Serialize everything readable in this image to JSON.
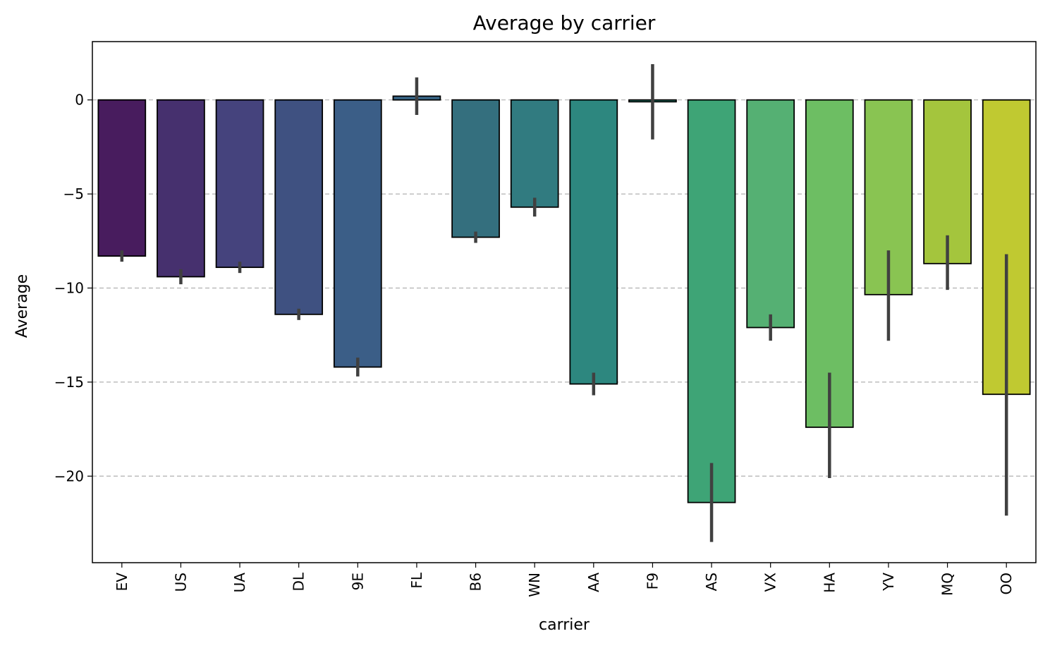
{
  "chart_data": {
    "type": "bar",
    "title": "Average by carrier",
    "xlabel": "carrier",
    "ylabel": "Average",
    "ylim": [
      -24.6,
      3.1
    ],
    "yticks": [
      0,
      -5,
      -10,
      -15,
      -20
    ],
    "ytick_labels": [
      "0",
      "−5",
      "−10",
      "−15",
      "−20"
    ],
    "grid": "y-dashed",
    "categories": [
      "EV",
      "US",
      "UA",
      "DL",
      "9E",
      "FL",
      "B6",
      "WN",
      "AA",
      "F9",
      "AS",
      "VX",
      "HA",
      "YV",
      "MQ",
      "OO"
    ],
    "values": [
      -8.3,
      -9.4,
      -8.9,
      -11.4,
      -14.2,
      0.2,
      -7.3,
      -5.7,
      -15.1,
      -0.1,
      -21.4,
      -12.1,
      -17.4,
      -10.35,
      -8.7,
      -15.65
    ],
    "error_low": [
      -8.6,
      -9.8,
      -9.2,
      -11.7,
      -14.7,
      -0.8,
      -7.6,
      -6.2,
      -15.7,
      -2.1,
      -23.5,
      -12.8,
      -20.1,
      -12.8,
      -10.1,
      -22.1
    ],
    "error_high": [
      -8.0,
      -9.0,
      -8.6,
      -11.1,
      -13.7,
      1.2,
      -7.0,
      -5.2,
      -14.5,
      1.9,
      -19.3,
      -11.4,
      -14.5,
      -8.0,
      -7.2,
      -8.2
    ],
    "colors": [
      "#481c5e",
      "#46306e",
      "#45437d",
      "#3f5181",
      "#3b5e87",
      "#386688",
      "#346f7e",
      "#317b80",
      "#2d877f",
      "#2d907d",
      "#3ea476",
      "#55b073",
      "#6dbe63",
      "#89c452",
      "#a4c53d",
      "#c0c931"
    ]
  }
}
